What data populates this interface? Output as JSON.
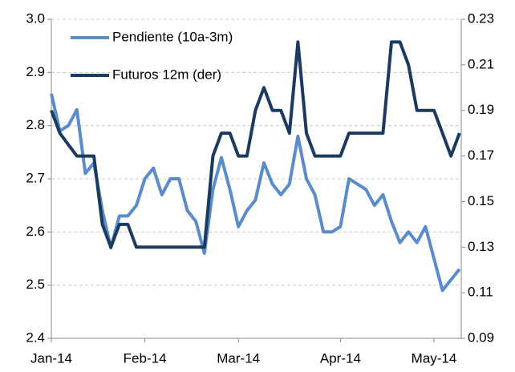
{
  "chart_data": {
    "type": "line",
    "categories": [
      "Jan-14",
      null,
      null,
      null,
      null,
      null,
      null,
      null,
      null,
      null,
      null,
      "Feb-14",
      null,
      null,
      null,
      null,
      null,
      null,
      null,
      null,
      null,
      null,
      "Mar-14",
      null,
      null,
      null,
      null,
      null,
      null,
      null,
      null,
      null,
      null,
      null,
      "Apr-14",
      null,
      null,
      null,
      null,
      null,
      null,
      null,
      null,
      null,
      null,
      "May-14",
      null,
      null,
      null
    ],
    "series": [
      {
        "name": "Pendiente (10a-3m)",
        "color": "#5a8ccc",
        "values": [
          2.86,
          2.79,
          2.8,
          2.83,
          2.71,
          2.73,
          2.64,
          2.57,
          2.63,
          2.63,
          2.65,
          2.7,
          2.72,
          2.67,
          2.7,
          2.7,
          2.64,
          2.62,
          2.56,
          2.68,
          2.74,
          2.68,
          2.61,
          2.64,
          2.66,
          2.73,
          2.69,
          2.67,
          2.69,
          2.78,
          2.7,
          2.67,
          2.6,
          2.6,
          2.61,
          2.7,
          2.69,
          2.68,
          2.65,
          2.67,
          2.62,
          2.58,
          2.6,
          2.58,
          2.61,
          2.55,
          2.49,
          2.51,
          2.53
        ]
      },
      {
        "name": "Futuros 12m (der)",
        "color": "#1b3a5f",
        "axis": "y2",
        "values": [
          0.19,
          0.18,
          0.175,
          0.17,
          0.17,
          0.17,
          0.14,
          0.13,
          0.14,
          0.14,
          0.13,
          0.13,
          0.13,
          0.13,
          0.13,
          0.13,
          0.13,
          0.13,
          0.13,
          0.17,
          0.18,
          0.18,
          0.17,
          0.17,
          0.19,
          0.2,
          0.19,
          0.19,
          0.18,
          0.22,
          0.18,
          0.17,
          0.17,
          0.17,
          0.17,
          0.18,
          0.18,
          0.18,
          0.18,
          0.18,
          0.22,
          0.22,
          0.21,
          0.19,
          0.19,
          0.19,
          0.18,
          0.17,
          0.18
        ]
      }
    ],
    "ylim": [
      2.4,
      3.0
    ],
    "yticks": [
      {
        "value": 2.4,
        "label": "2.4"
      },
      {
        "value": 2.5,
        "label": "2.5"
      },
      {
        "value": 2.6,
        "label": "2.6"
      },
      {
        "value": 2.7,
        "label": "2.7"
      },
      {
        "value": 2.8,
        "label": "2.8"
      },
      {
        "value": 2.9,
        "label": "2.9"
      },
      {
        "value": 3.0,
        "label": "3.0"
      }
    ],
    "y2lim": [
      0.09,
      0.23
    ],
    "y2ticks": [
      0.09,
      0.11,
      0.13,
      0.15,
      0.17,
      0.19,
      0.21,
      0.23
    ],
    "grid": true,
    "legend": "upper left"
  }
}
